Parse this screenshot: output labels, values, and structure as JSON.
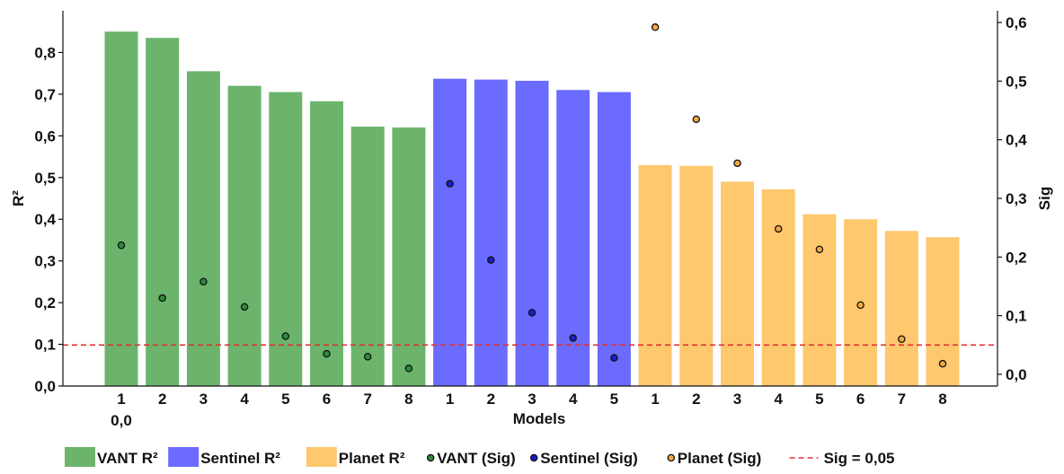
{
  "chart_data": {
    "type": "bar",
    "xlabel": "Models",
    "ylabel_left": "R²",
    "ylabel_right": "Sig",
    "ylim_left": [
      0,
      0.9
    ],
    "ylim_right": [
      -0.02,
      0.62
    ],
    "left_ticks": [
      "0,0",
      "0,1",
      "0,2",
      "0,3",
      "0,4",
      "0,5",
      "0,6",
      "0,7",
      "0,8"
    ],
    "right_ticks": [
      "0,0",
      "0,1",
      "0,2",
      "0,3",
      "0,4",
      "0,5",
      "0,6"
    ],
    "x_origin_label": "0,0",
    "grid": false,
    "legend_position": "bottom",
    "series": [
      {
        "name": "VANT R²",
        "color": "#6cb46c",
        "categories": [
          "1",
          "2",
          "3",
          "4",
          "5",
          "6",
          "7",
          "8"
        ],
        "values": [
          0.85,
          0.835,
          0.755,
          0.72,
          0.705,
          0.683,
          0.622,
          0.62
        ]
      },
      {
        "name": "Sentinel R²",
        "color": "#6b6bff",
        "categories": [
          "1",
          "2",
          "3",
          "4",
          "5"
        ],
        "values": [
          0.737,
          0.735,
          0.732,
          0.71,
          0.705
        ]
      },
      {
        "name": "Planet R²",
        "color": "#fdc86e",
        "categories": [
          "1",
          "2",
          "3",
          "4",
          "5",
          "6",
          "7",
          "8"
        ],
        "values": [
          0.53,
          0.528,
          0.49,
          0.472,
          0.412,
          0.4,
          0.372,
          0.357
        ]
      }
    ],
    "sig_series": [
      {
        "name": "VANT (Sig)",
        "color": "#2e8b3e",
        "values": [
          0.22,
          0.13,
          0.158,
          0.115,
          0.065,
          0.035,
          0.03,
          0.01
        ]
      },
      {
        "name": "Sentinel (Sig)",
        "color": "#1c1ccc",
        "values": [
          0.325,
          0.195,
          0.105,
          0.062,
          0.028
        ]
      },
      {
        "name": "Planet (Sig)",
        "color": "#f5a742",
        "values": [
          0.592,
          0.435,
          0.36,
          0.248,
          0.213,
          0.118,
          0.06,
          0.018
        ]
      }
    ],
    "threshold": {
      "name": "Sig = 0,05",
      "value": 0.05,
      "axis": "right",
      "color": "#e03030"
    }
  }
}
